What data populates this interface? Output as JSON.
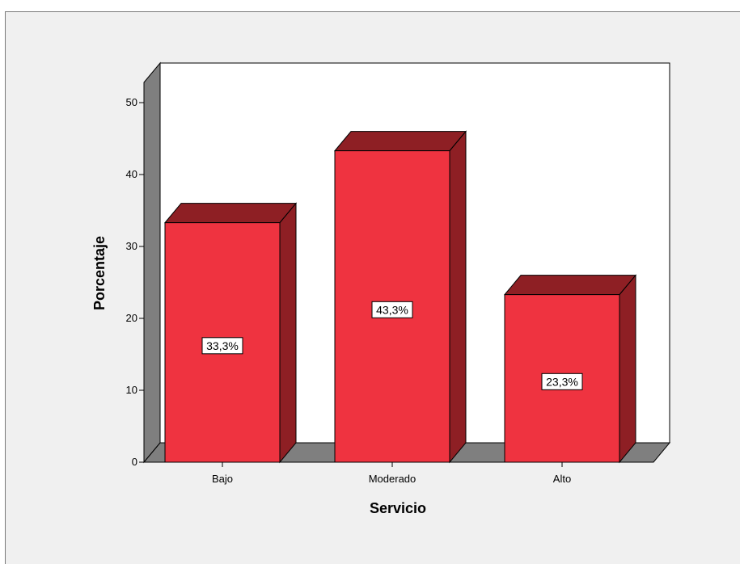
{
  "chart_data": {
    "type": "bar",
    "style": "3d",
    "categories": [
      "Bajo",
      "Moderado",
      "Alto"
    ],
    "values": [
      33.3,
      43.3,
      23.3
    ],
    "data_labels": [
      "33,3%",
      "43,3%",
      "23,3%"
    ],
    "xlabel": "Servicio",
    "ylabel": "Porcentaje",
    "ylim": [
      0,
      50
    ],
    "yticks": [
      0,
      10,
      20,
      30,
      40,
      50
    ],
    "grid": false,
    "legend": "none"
  },
  "colors": {
    "bar_front": "#ef3340",
    "bar_side": "#8e1f24",
    "bar_top": "#8e1f24",
    "back_wall": "#ffffff",
    "side_wall": "#7f7f7f",
    "floor": "#7f7f7f",
    "frame_bg": "#f0f0f0"
  }
}
